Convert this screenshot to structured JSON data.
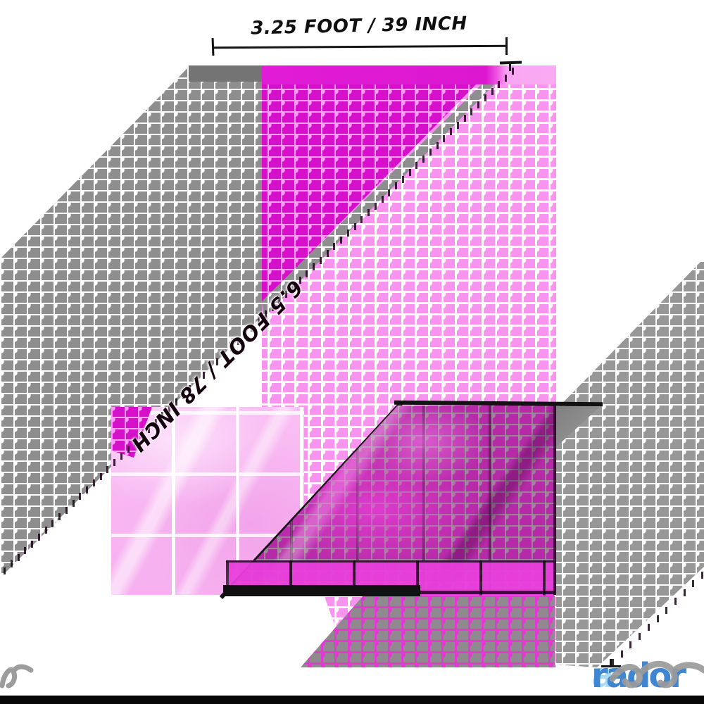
{
  "image_kind": "product dimension diagram of a pink foil fringe curtain",
  "dimensions": {
    "width_label": "3.25 FOOT / 39 INCH",
    "height_label": "6.5 FOOT / 78 INCH"
  },
  "watermark": {
    "first": "a",
    "rest": "rador"
  },
  "colors": {
    "magenta_band": "#e01cd6",
    "deep_magenta_pattern": "#d60fc8",
    "light_pink_pattern": "#f795ee",
    "gray_pattern": "#8e8e8e",
    "foil_closeup_pink": "#f9bef4",
    "dark_foil": "#b62aa8",
    "annotation_black": "#141414",
    "watermark_light_blue": "#a7dbf6",
    "watermark_blue": "#3e86d1",
    "bottom_bar_black": "#060606"
  },
  "icons": {
    "left_mark": "scribble-watermark-icon",
    "dimension_ticks": "tick-mark-icon"
  }
}
